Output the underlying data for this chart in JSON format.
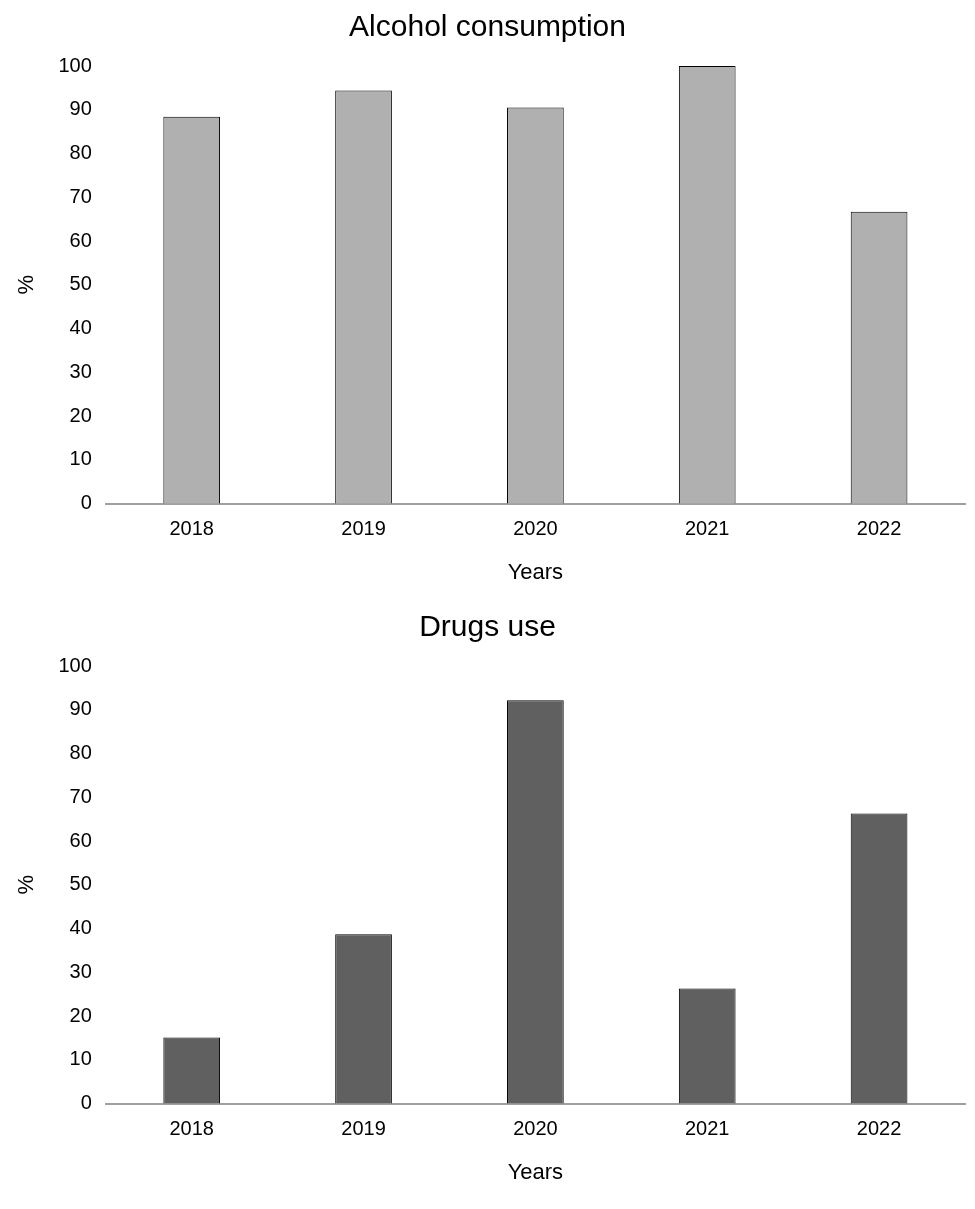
{
  "chart_data": [
    {
      "type": "bar",
      "title": "Alcohol consumption",
      "xlabel": "Years",
      "ylabel": "%",
      "categories": [
        "2018",
        "2019",
        "2020",
        "2021",
        "2022"
      ],
      "values": [
        88.4,
        94.4,
        90.5,
        100,
        66.7
      ],
      "color": "#b0b0b0",
      "ylim": [
        0,
        100
      ],
      "yticks": [
        0,
        10,
        20,
        30,
        40,
        50,
        60,
        70,
        80,
        90,
        100
      ],
      "grid": false,
      "legend": false
    },
    {
      "type": "bar",
      "title": "Drugs use",
      "xlabel": "Years",
      "ylabel": "%",
      "categories": [
        "2018",
        "2019",
        "2020",
        "2021",
        "2022"
      ],
      "values": [
        15.1,
        38.7,
        92.2,
        26.3,
        66.3
      ],
      "color": "#606060",
      "ylim": [
        0,
        100
      ],
      "yticks": [
        0,
        10,
        20,
        30,
        40,
        50,
        60,
        70,
        80,
        90,
        100
      ],
      "grid": false,
      "legend": false
    }
  ]
}
